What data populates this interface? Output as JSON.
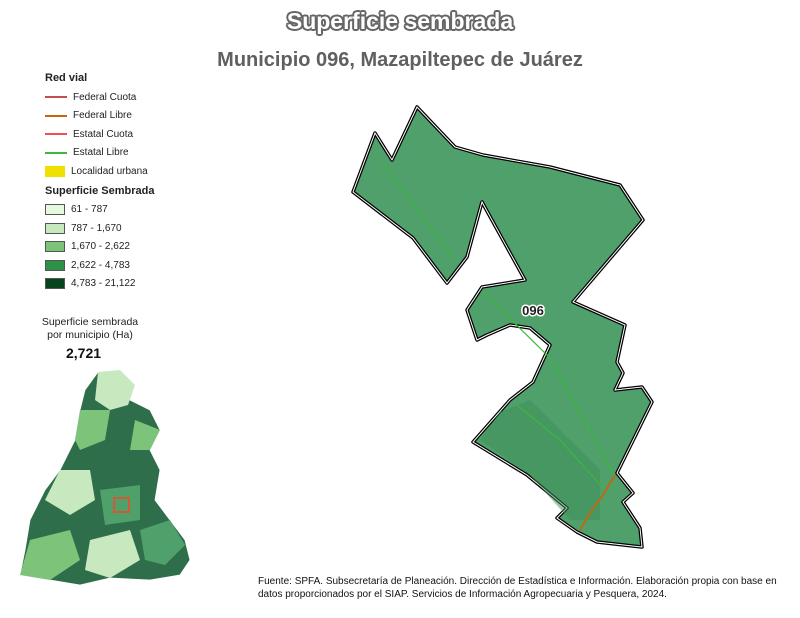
{
  "title": "Superficie sembrada",
  "subtitle": "Municipio 096, Mazapiltepec de Juárez",
  "legend": {
    "road_title": "Red vial",
    "roads": [
      {
        "label": "Federal Cuota",
        "color": "#c0504d"
      },
      {
        "label": "Federal Libre",
        "color": "#c8650a"
      },
      {
        "label": "Estatal Cuota",
        "color": "#f05050"
      },
      {
        "label": "Estatal Libre",
        "color": "#3cb83c"
      },
      {
        "label": "Localidad urbana",
        "color": "#f0e000"
      }
    ],
    "area_title": "Superficie Sembrada",
    "classes": [
      {
        "label": "61 - 787",
        "color": "#e5f9dc"
      },
      {
        "label": "787 - 1,670",
        "color": "#c8e8c0"
      },
      {
        "label": "1,670 - 2,622",
        "color": "#7dc47a"
      },
      {
        "label": "2,622 - 4,783",
        "color": "#2e9148"
      },
      {
        "label": "4,783 - 21,122",
        "color": "#05441c"
      }
    ]
  },
  "inset": {
    "label_line1": "Superficie sembrada",
    "label_line2": "por municipio (Ha)",
    "value": "2,721"
  },
  "map": {
    "municipality_code": "096",
    "fill": "#4fa06a"
  },
  "source": "Fuente: SPFA. Subsecretaría de Planeación. Dirección de Estadística e Información. Elaboración propia con base en datos proporcionados por el SIAP. Servicios de Información Agropecuaria y Pesquera, 2024."
}
